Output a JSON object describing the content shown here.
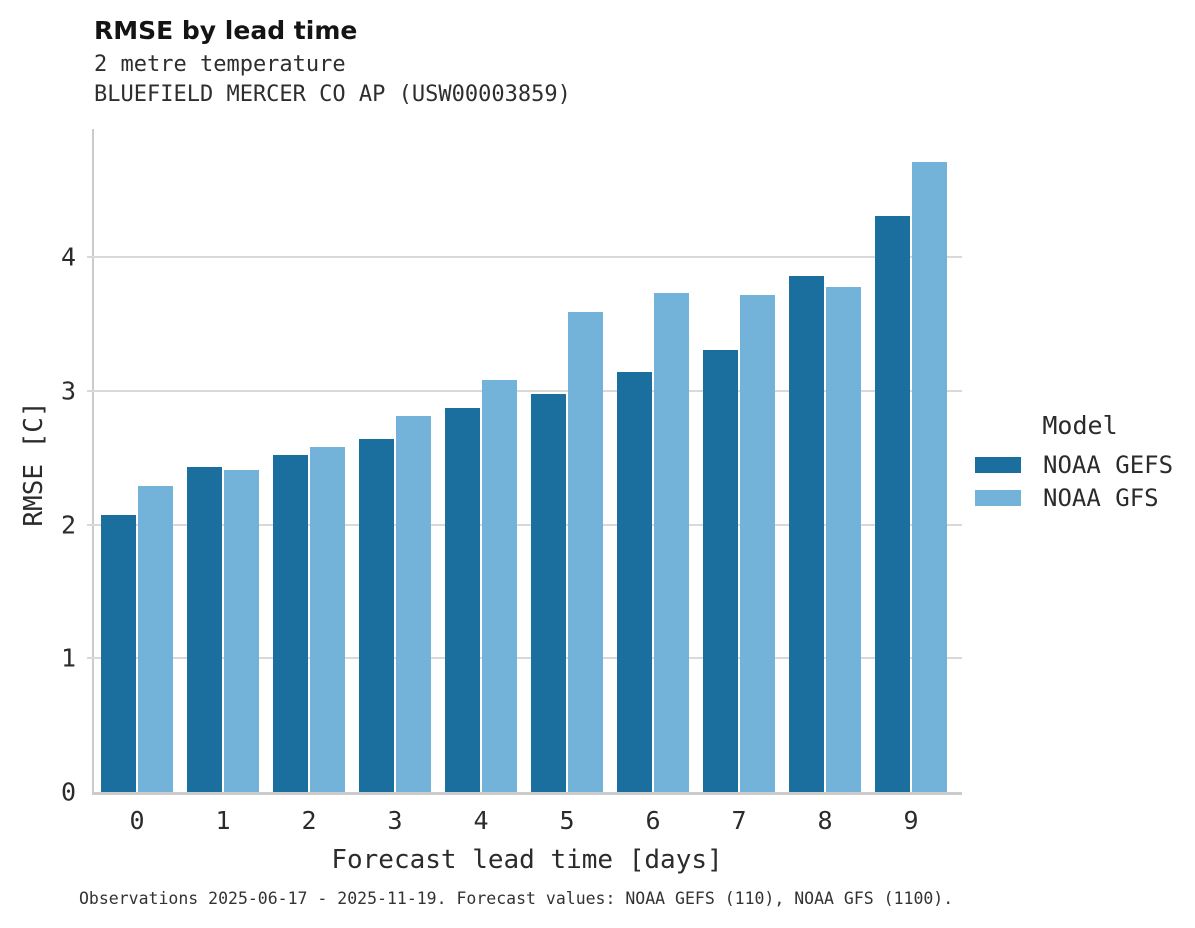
{
  "chart_data": {
    "type": "bar",
    "title": "RMSE by lead time",
    "subtitle_line1": "2 metre temperature",
    "subtitle_line2": "BLUEFIELD MERCER CO AP (USW00003859)",
    "xlabel": "Forecast lead time [days]",
    "ylabel": "RMSE [C]",
    "categories": [
      "0",
      "1",
      "2",
      "3",
      "4",
      "5",
      "6",
      "7",
      "8",
      "9"
    ],
    "series": [
      {
        "name": "NOAA GEFS",
        "color": "#1b6f9f",
        "values": [
          2.07,
          2.43,
          2.52,
          2.64,
          2.87,
          2.98,
          3.14,
          3.31,
          3.86,
          4.31
        ]
      },
      {
        "name": "NOAA GFS",
        "color": "#73b3da",
        "values": [
          2.29,
          2.41,
          2.58,
          2.81,
          3.08,
          3.59,
          3.73,
          3.72,
          3.78,
          4.71
        ]
      }
    ],
    "ylim": [
      0,
      4.96
    ],
    "yticks": [
      0,
      1,
      2,
      3,
      4
    ],
    "grid": true,
    "legend_title": "Model",
    "legend_position": "right-center"
  },
  "footer": {
    "caption": "Observations 2025-06-17 - 2025-11-19. Forecast values: NOAA GEFS (110), NOAA GFS (1100)."
  },
  "style": {
    "background": "#ffffff",
    "grid_color": "#d9d9d9",
    "axis_color": "#cbcbcb",
    "text_color": "#2b2b2b"
  }
}
